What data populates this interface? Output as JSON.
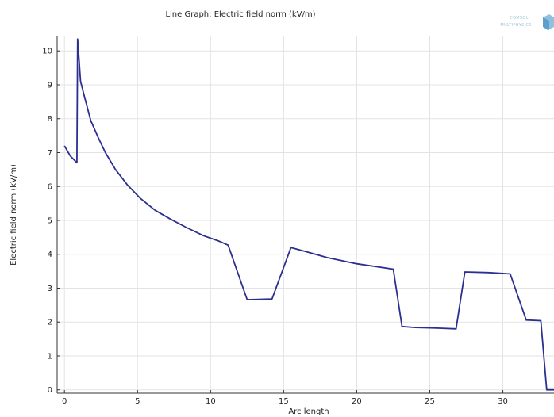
{
  "chart_data": {
    "type": "line",
    "title": "Line Graph: Electric field norm (kV/m)",
    "xlabel": "Arc length",
    "ylabel": "Electric field norm (kV/m)",
    "xlim": [
      -0.5,
      33.5
    ],
    "ylim": [
      -0.1,
      10.45
    ],
    "xticks": [
      0,
      5,
      10,
      15,
      20,
      25,
      30
    ],
    "yticks": [
      0,
      1,
      2,
      3,
      4,
      5,
      6,
      7,
      8,
      9,
      10
    ],
    "grid": true,
    "line_color": "#2b2f8f",
    "series": [
      {
        "x": [
          0,
          0.4,
          0.85,
          0.9,
          1.1,
          1.4,
          1.8,
          2.3,
          2.8,
          3.5,
          4.3,
          5.2,
          6.2,
          7.2,
          8.3,
          9.5,
          10.5,
          11.2,
          12.5,
          14.2,
          15.5,
          16.5,
          18,
          20,
          22.5,
          23.1,
          24,
          25.5,
          26.8,
          27.4,
          29,
          30.5,
          31.6,
          32.6,
          33.0,
          33.5
        ],
        "y": [
          7.2,
          6.9,
          6.7,
          10.35,
          9.1,
          8.6,
          7.95,
          7.45,
          7.0,
          6.5,
          6.05,
          5.65,
          5.3,
          5.05,
          4.8,
          4.55,
          4.4,
          4.27,
          2.66,
          2.68,
          4.2,
          4.08,
          3.9,
          3.72,
          3.56,
          1.87,
          1.84,
          1.82,
          1.8,
          3.48,
          3.46,
          3.42,
          2.06,
          2.04,
          0.0,
          0.0
        ]
      }
    ]
  },
  "logo": {
    "line1": "COMSOL",
    "line2": "MULTIPHYSICS"
  },
  "colors": {
    "axis": "#333333",
    "grid": "#e3e3e3",
    "logo_blue": "#8fc1df"
  }
}
